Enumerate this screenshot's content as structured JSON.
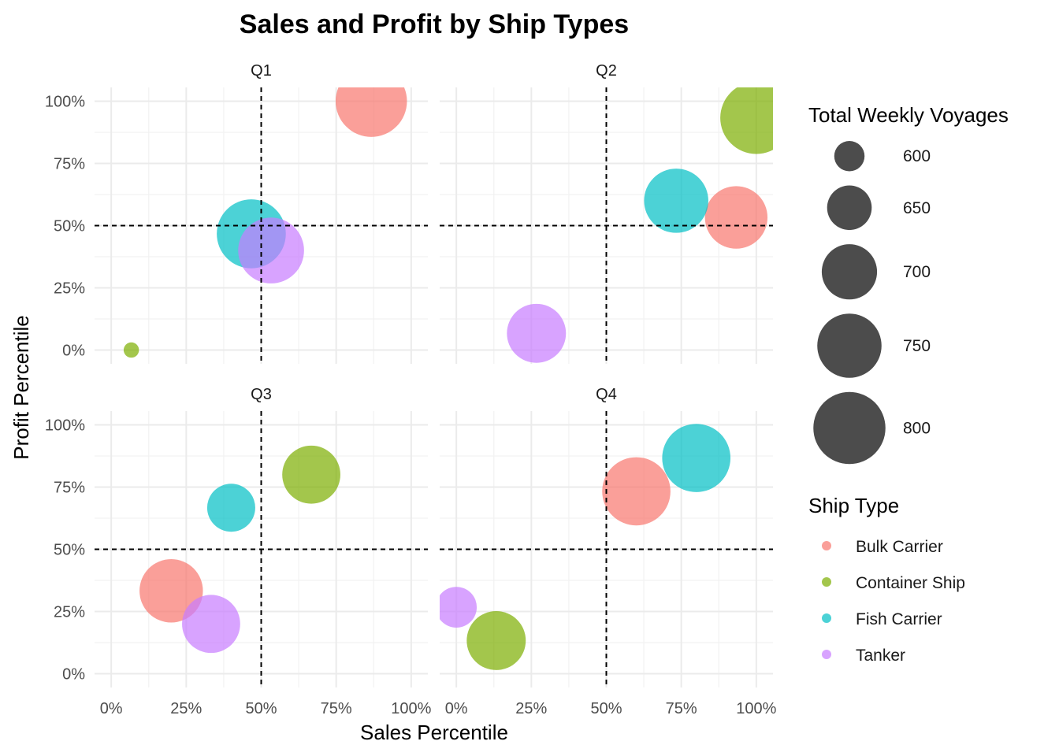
{
  "chart_data": {
    "type": "scatter",
    "title": "Sales and Profit by Ship Types",
    "xlabel": "Sales Percentile",
    "ylabel": "Profit Percentile",
    "xlim": [
      0,
      1
    ],
    "ylim": [
      0,
      1
    ],
    "x_ticks": [
      0,
      0.25,
      0.5,
      0.75,
      1
    ],
    "y_ticks": [
      0,
      0.25,
      0.5,
      0.75,
      1
    ],
    "x_tick_labels": [
      "0%",
      "25%",
      "50%",
      "75%",
      "100%"
    ],
    "y_tick_labels": [
      "0%",
      "25%",
      "50%",
      "75%",
      "100%"
    ],
    "reference_lines": {
      "x": 0.5,
      "y": 0.5,
      "style": "dashed"
    },
    "grid": true,
    "legend_position": "right",
    "size_legend": {
      "title": "Total Weekly Voyages",
      "values": [
        600,
        650,
        700,
        750,
        800
      ],
      "labels": [
        "600",
        "650",
        "700",
        "750",
        "800"
      ]
    },
    "color_legend": {
      "title": "Ship Type",
      "items": [
        {
          "name": "Bulk Carrier",
          "color": "#F8766D"
        },
        {
          "name": "Container Ship",
          "color": "#7CAE00"
        },
        {
          "name": "Fish Carrier",
          "color": "#00BFC4"
        },
        {
          "name": "Tanker",
          "color": "#C77CFF"
        }
      ]
    },
    "facets": [
      {
        "name": "Q1",
        "points": [
          {
            "ship_type": "Bulk Carrier",
            "x": 0.867,
            "y": 1.0,
            "voyages": 795
          },
          {
            "ship_type": "Container Ship",
            "x": 0.067,
            "y": 0.0,
            "voyages": 568
          },
          {
            "ship_type": "Fish Carrier",
            "x": 0.467,
            "y": 0.467,
            "voyages": 780
          },
          {
            "ship_type": "Tanker",
            "x": 0.533,
            "y": 0.4,
            "voyages": 760
          }
        ]
      },
      {
        "name": "Q2",
        "points": [
          {
            "ship_type": "Bulk Carrier",
            "x": 0.933,
            "y": 0.533,
            "voyages": 740
          },
          {
            "ship_type": "Container Ship",
            "x": 1.0,
            "y": 0.933,
            "voyages": 800
          },
          {
            "ship_type": "Fish Carrier",
            "x": 0.733,
            "y": 0.6,
            "voyages": 750
          },
          {
            "ship_type": "Tanker",
            "x": 0.267,
            "y": 0.067,
            "voyages": 720
          }
        ]
      },
      {
        "name": "Q3",
        "points": [
          {
            "ship_type": "Bulk Carrier",
            "x": 0.2,
            "y": 0.333,
            "voyages": 745
          },
          {
            "ship_type": "Container Ship",
            "x": 0.667,
            "y": 0.8,
            "voyages": 715
          },
          {
            "ship_type": "Fish Carrier",
            "x": 0.4,
            "y": 0.667,
            "voyages": 665
          },
          {
            "ship_type": "Tanker",
            "x": 0.333,
            "y": 0.2,
            "voyages": 715
          }
        ]
      },
      {
        "name": "Q4",
        "points": [
          {
            "ship_type": "Bulk Carrier",
            "x": 0.6,
            "y": 0.733,
            "voyages": 775
          },
          {
            "ship_type": "Container Ship",
            "x": 0.133,
            "y": 0.133,
            "voyages": 720
          },
          {
            "ship_type": "Fish Carrier",
            "x": 0.8,
            "y": 0.867,
            "voyages": 775
          },
          {
            "ship_type": "Tanker",
            "x": 0.0,
            "y": 0.267,
            "voyages": 635
          }
        ]
      }
    ]
  }
}
